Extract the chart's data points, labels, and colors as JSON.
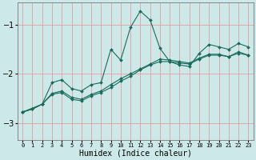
{
  "xlabel": "Humidex (Indice chaleur)",
  "xlim": [
    -0.5,
    23.5
  ],
  "ylim": [
    -3.35,
    -0.55
  ],
  "yticks": [
    -3,
    -2,
    -1
  ],
  "xticks": [
    0,
    1,
    2,
    3,
    4,
    5,
    6,
    7,
    8,
    9,
    10,
    11,
    12,
    13,
    14,
    15,
    16,
    17,
    18,
    19,
    20,
    21,
    22,
    23
  ],
  "bg_color": "#cce8e8",
  "grid_color": "#e89090",
  "line_color": "#1a6b5a",
  "series": [
    {
      "x": [
        0,
        1,
        2,
        3,
        4,
        5,
        6,
        7,
        8,
        9,
        10,
        11,
        12,
        13,
        14,
        15,
        16,
        17,
        18,
        19,
        20,
        21,
        22,
        23
      ],
      "y": [
        -2.78,
        -2.72,
        -2.62,
        -2.18,
        -2.12,
        -2.3,
        -2.35,
        -2.22,
        -2.18,
        -1.5,
        -1.72,
        -1.05,
        -0.72,
        -0.9,
        -1.48,
        -1.75,
        -1.82,
        -1.85,
        -1.58,
        -1.4,
        -1.45,
        -1.5,
        -1.38,
        -1.45
      ]
    },
    {
      "x": [
        0,
        2,
        3,
        4,
        5,
        6,
        7,
        8,
        9,
        10,
        11,
        12,
        13,
        14,
        15,
        16,
        17,
        18,
        19,
        20,
        21,
        22,
        23
      ],
      "y": [
        -2.78,
        -2.62,
        -2.4,
        -2.35,
        -2.48,
        -2.52,
        -2.42,
        -2.35,
        -2.22,
        -2.1,
        -2.0,
        -1.9,
        -1.8,
        -1.7,
        -1.72,
        -1.75,
        -1.78,
        -1.68,
        -1.6,
        -1.6,
        -1.65,
        -1.55,
        -1.62
      ]
    },
    {
      "x": [
        0,
        1,
        2,
        3,
        4,
        5,
        6,
        7,
        8,
        9,
        10,
        11,
        12,
        13,
        14,
        15,
        16,
        17,
        18,
        19,
        20,
        21,
        22,
        23
      ],
      "y": [
        -2.78,
        -2.72,
        -2.62,
        -2.42,
        -2.38,
        -2.52,
        -2.55,
        -2.45,
        -2.38,
        -2.28,
        -2.15,
        -2.05,
        -1.92,
        -1.82,
        -1.75,
        -1.75,
        -1.78,
        -1.8,
        -1.7,
        -1.62,
        -1.62,
        -1.65,
        -1.58,
        -1.62
      ]
    }
  ],
  "marker": "D",
  "marker_size": 2.0,
  "line_width": 0.8
}
